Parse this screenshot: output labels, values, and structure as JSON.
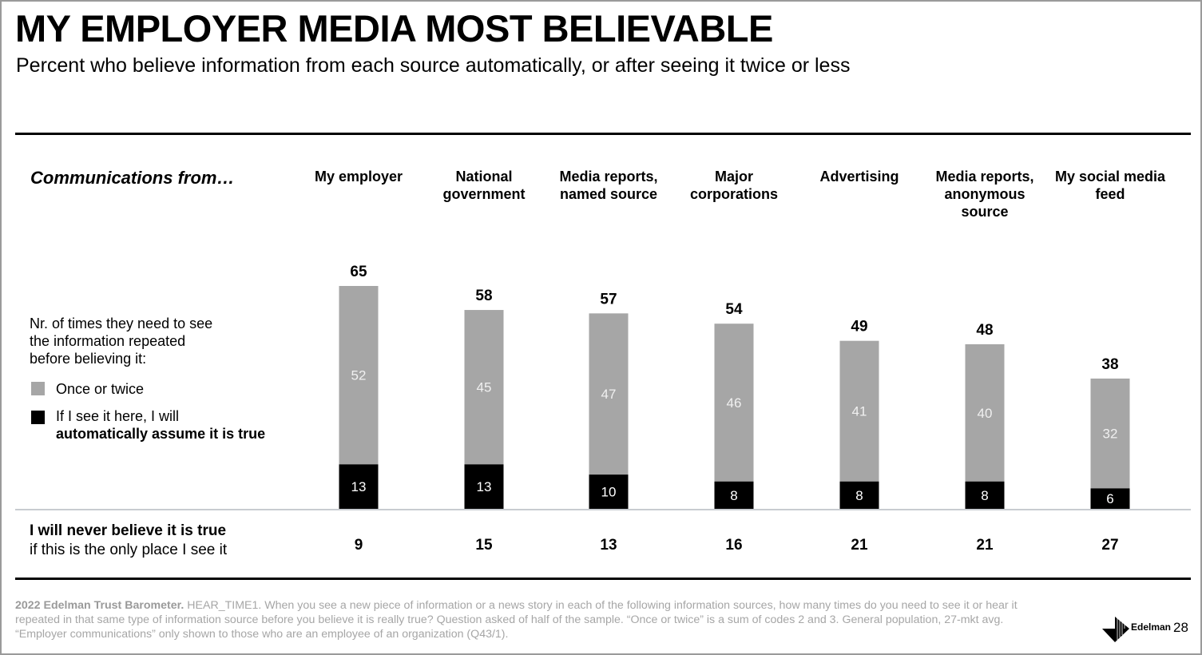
{
  "page": {
    "title": "MY EMPLOYER MEDIA MOST BELIEVABLE",
    "subtitle": "Percent who believe information from each source automatically, or after seeing it twice or less",
    "section_label": "Communications from…",
    "legend_intro": "Nr. of times they need to see\nthe information repeated\nbefore believing it:",
    "legend": [
      {
        "label": "Once or twice",
        "color": "#a6a6a6"
      },
      {
        "label_regular": "If I see it here, I will",
        "label_bold": "automatically assume it is true",
        "color": "#000000"
      }
    ],
    "never_row": {
      "label_bold": "I will never believe it is true",
      "label_regular": "if this is the only place I see it",
      "values": [
        9,
        15,
        13,
        16,
        21,
        21,
        27
      ]
    },
    "footnote": {
      "source_bold": "2022 Edelman Trust Barometer.",
      "text": " HEAR_TIME1. When you see a new piece of information or a news story in each of the following information sources, how many times do you need to see it or hear it repeated in that same type of information source before you believe it is really true? Question asked of half of the sample. “Once or twice” is a sum of codes 2 and 3. General population, 27-mkt avg. “Employer communications” only shown to those who are an employee of an organization (Q43/1)."
    },
    "brand": "Edelman",
    "page_number": "28"
  },
  "chart_data": {
    "type": "bar",
    "stacked": true,
    "title": "MY EMPLOYER MEDIA MOST BELIEVABLE",
    "categories": [
      "My employer",
      "National\ngovernment",
      "Media reports,\nnamed source",
      "Major\ncorporations",
      "Advertising",
      "Media reports,\nanonymous\nsource",
      "My social media\nfeed"
    ],
    "series": [
      {
        "name": "If I see it here, I will automatically assume it is true",
        "color": "#000000",
        "values": [
          13,
          13,
          10,
          8,
          8,
          8,
          6
        ]
      },
      {
        "name": "Once or twice",
        "color": "#a6a6a6",
        "values": [
          52,
          45,
          47,
          46,
          41,
          40,
          32
        ]
      }
    ],
    "totals": [
      65,
      58,
      57,
      54,
      49,
      48,
      38
    ],
    "xlabel": "",
    "ylabel": "",
    "ylim": [
      0,
      65
    ],
    "grid": false,
    "legend": "left"
  }
}
